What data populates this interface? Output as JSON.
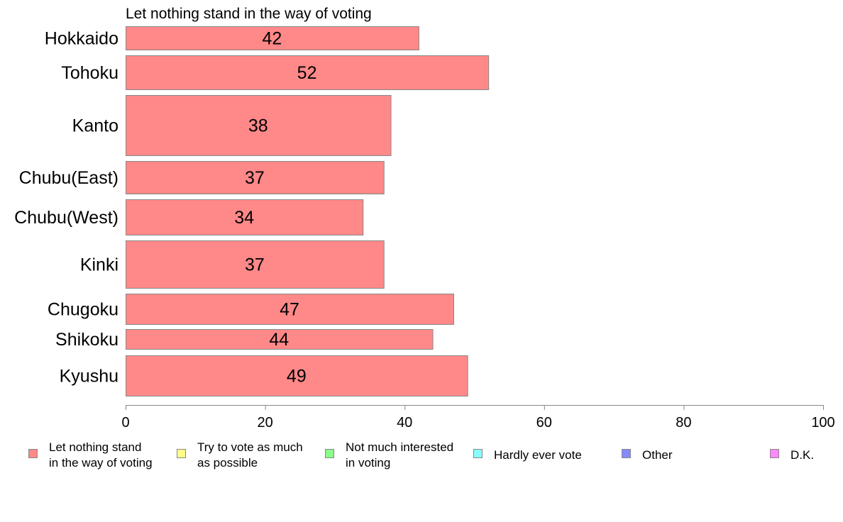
{
  "chart_data": {
    "type": "bar",
    "orientation": "horizontal",
    "title": "Let nothing stand in the way of voting",
    "categories": [
      "Hokkaido",
      "Tohoku",
      "Kanto",
      "Chubu(East)",
      "Chubu(West)",
      "Kinki",
      "Chugoku",
      "Shikoku",
      "Kyushu"
    ],
    "values": [
      42,
      52,
      38,
      37,
      34,
      37,
      47,
      44,
      49
    ],
    "xlim": [
      0,
      100
    ],
    "xticks": [
      "0",
      "20",
      "40",
      "60",
      "80",
      "100"
    ],
    "grid": false,
    "bar_color": "#ff8888",
    "bar_edge_color": "#888888",
    "legend_position": "bottom",
    "legend": [
      {
        "lines": [
          "Let nothing stand",
          "in the way of voting"
        ],
        "color": "#ff8888"
      },
      {
        "lines": [
          "Try to vote as much",
          "as possible"
        ],
        "color": "#ffff88"
      },
      {
        "lines": [
          "Not much interested",
          "in voting"
        ],
        "color": "#88ff88"
      },
      {
        "lines": [
          "Hardly ever vote"
        ],
        "color": "#88ffff"
      },
      {
        "lines": [
          "Other"
        ],
        "color": "#8888ff"
      },
      {
        "lines": [
          "D.K."
        ],
        "color": "#ff88ff"
      }
    ]
  }
}
